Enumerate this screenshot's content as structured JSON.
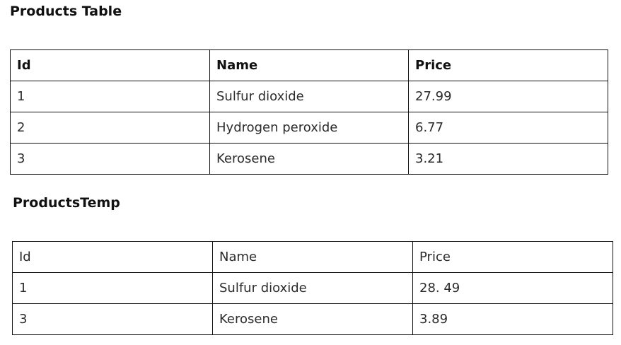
{
  "products_table": {
    "title": "Products Table",
    "headers": [
      "Id",
      "Name",
      "Price"
    ],
    "rows": [
      [
        "1",
        "Sulfur dioxide",
        "27.99"
      ],
      [
        "2",
        "Hydrogen peroxide",
        "6.77"
      ],
      [
        "3",
        "Kerosene",
        "3.21"
      ]
    ]
  },
  "products_temp": {
    "title": "ProductsTemp",
    "headers": [
      "Id",
      "Name",
      "Price"
    ],
    "rows": [
      [
        "1",
        "Sulfur dioxide",
        "28. 49"
      ],
      [
        "3",
        "Kerosene",
        "3.89"
      ]
    ]
  }
}
